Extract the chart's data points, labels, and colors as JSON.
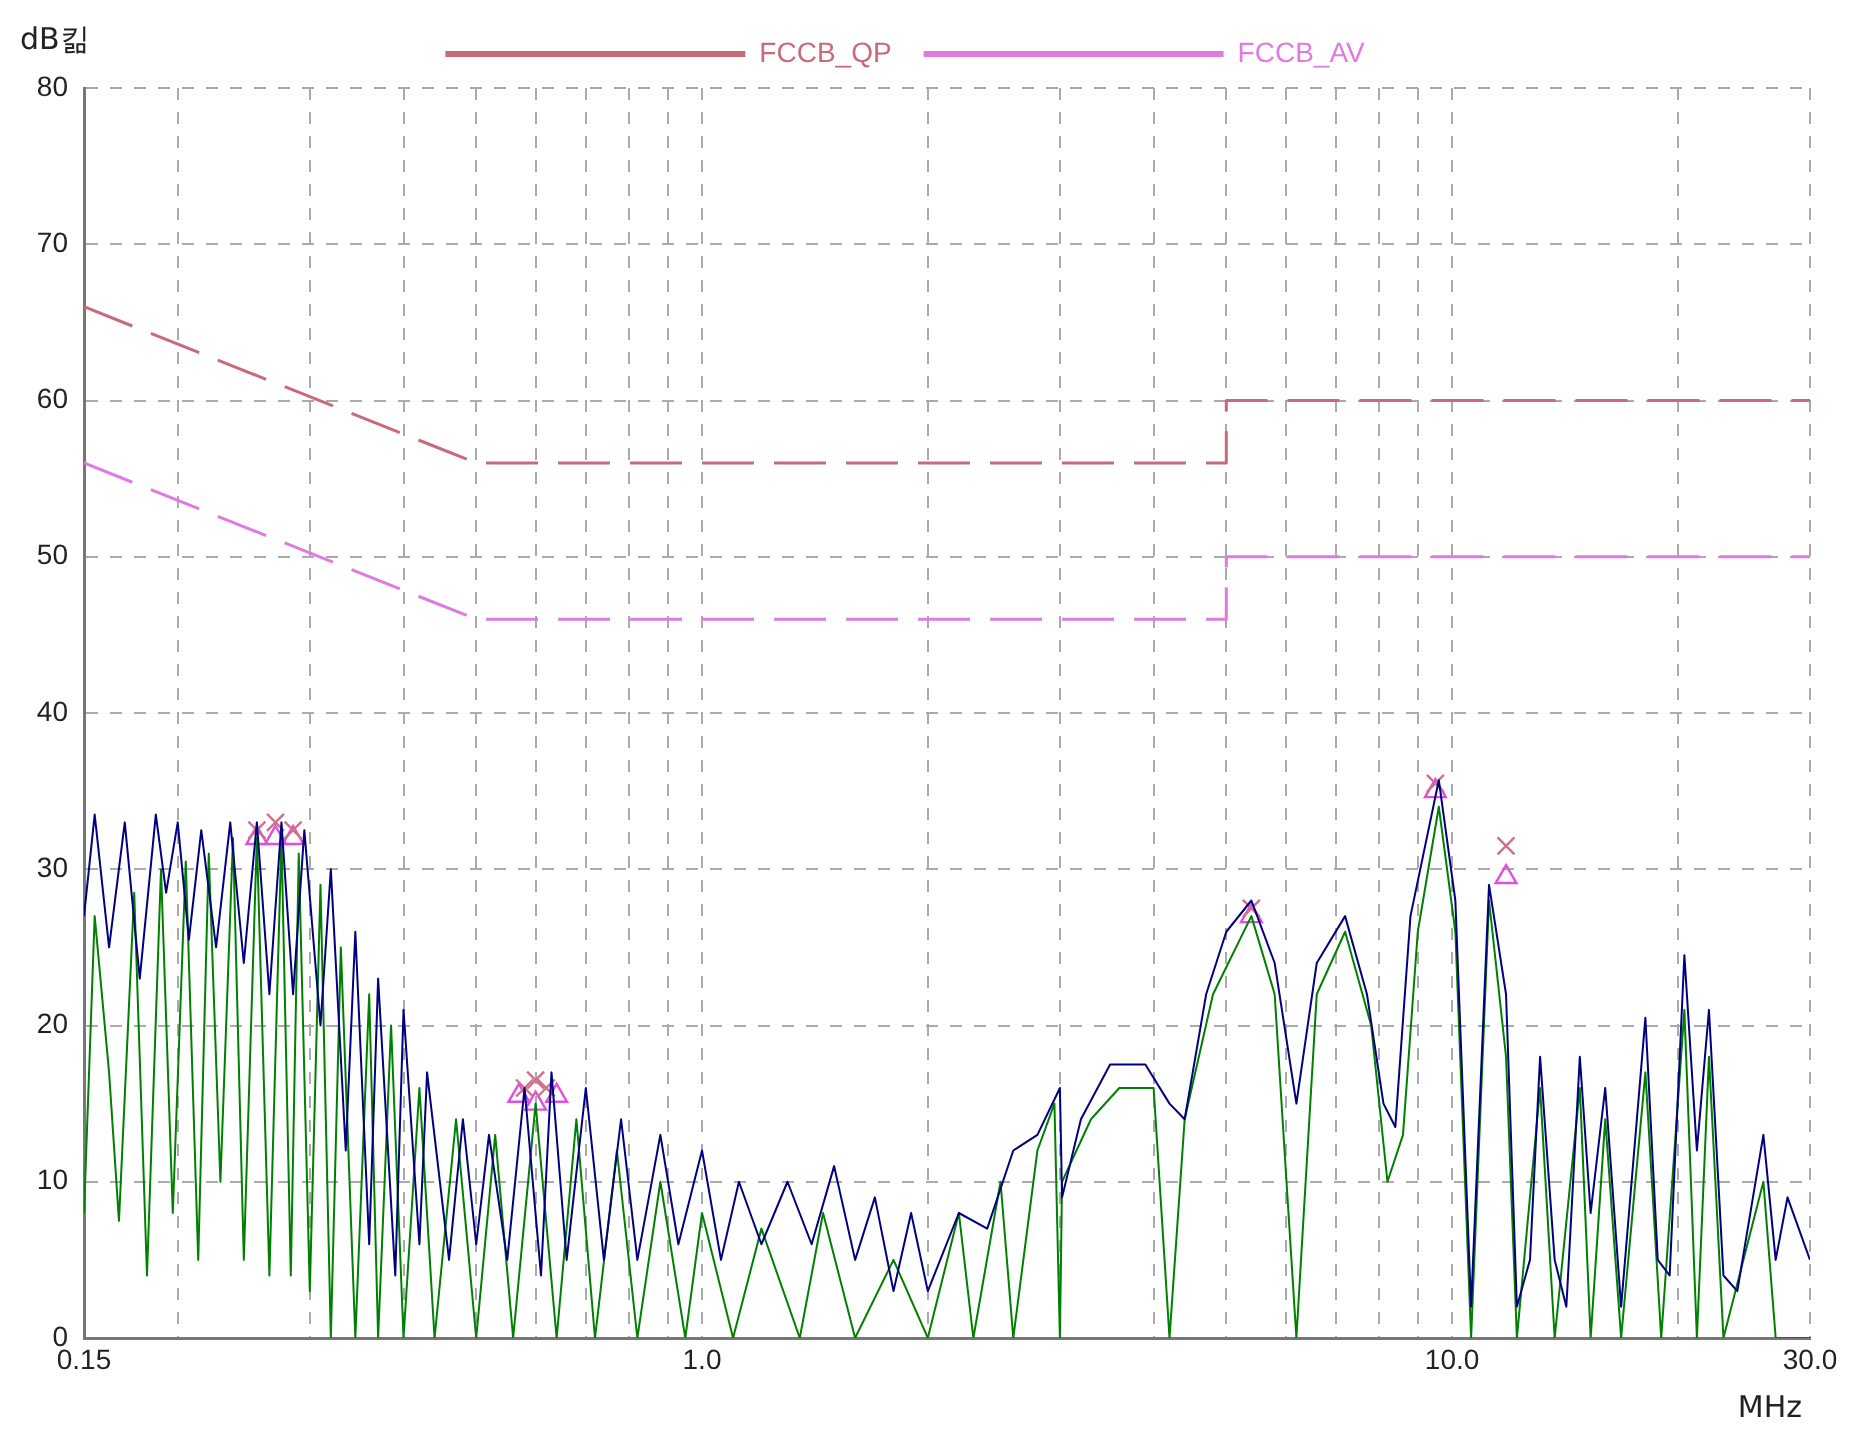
{
  "chart_data": {
    "type": "line",
    "ylabel": "dB킮",
    "xlabel": "MHz",
    "xlim": [
      0.15,
      30
    ],
    "ylim": [
      0,
      80
    ],
    "xticks": [
      {
        "value": 0.15,
        "label": "0.15"
      },
      {
        "value": 0.2,
        "label": null
      },
      {
        "value": 0.3,
        "label": null
      },
      {
        "value": 0.4,
        "label": null
      },
      {
        "value": 0.5,
        "label": null
      },
      {
        "value": 0.6,
        "label": null
      },
      {
        "value": 0.7,
        "label": null
      },
      {
        "value": 0.8,
        "label": null
      },
      {
        "value": 0.9,
        "label": null
      },
      {
        "value": 1,
        "label": "1.0"
      },
      {
        "value": 2,
        "label": null
      },
      {
        "value": 3,
        "label": null
      },
      {
        "value": 4,
        "label": null
      },
      {
        "value": 5,
        "label": null
      },
      {
        "value": 6,
        "label": null
      },
      {
        "value": 7,
        "label": null
      },
      {
        "value": 8,
        "label": null
      },
      {
        "value": 9,
        "label": null
      },
      {
        "value": 10,
        "label": "10.0"
      },
      {
        "value": 20,
        "label": null
      },
      {
        "value": 30,
        "label": "30.0"
      }
    ],
    "yticks": [
      0,
      10,
      20,
      30,
      40,
      50,
      60,
      70,
      80
    ],
    "log": "x",
    "grid": true,
    "legend": "top",
    "marker": "none",
    "line_style": "solid",
    "series": [
      {
        "color": "#000080",
        "x": [
          0.15,
          0.155,
          0.162,
          0.17,
          0.178,
          0.187,
          0.193,
          0.2,
          0.207,
          0.215,
          0.225,
          0.235,
          0.245,
          0.255,
          0.265,
          0.275,
          0.285,
          0.295,
          0.31,
          0.32,
          0.335,
          0.345,
          0.36,
          0.37,
          0.39,
          0.4,
          0.42,
          0.43,
          0.46,
          0.48,
          0.5,
          0.52,
          0.55,
          0.58,
          0.61,
          0.63,
          0.66,
          0.7,
          0.74,
          0.78,
          0.82,
          0.88,
          0.93,
          1.0,
          1.06,
          1.12,
          1.2,
          1.3,
          1.4,
          1.5,
          1.6,
          1.7,
          1.8,
          1.9,
          2.0,
          2.2,
          2.4,
          2.6,
          2.8,
          3.0,
          3.02,
          3.2,
          3.5,
          3.9,
          4.2,
          4.4,
          4.7,
          5.0,
          5.4,
          5.8,
          6.2,
          6.6,
          7.2,
          7.7,
          8.1,
          8.4,
          8.8,
          9.6,
          10.1,
          10.6,
          11.2,
          11.8,
          12.2,
          12.7,
          13.1,
          13.7,
          14.2,
          14.8,
          15.3,
          16,
          16.8,
          18.1,
          18.8,
          19.5,
          20.4,
          21.2,
          22,
          23,
          24,
          26,
          27,
          28,
          30
        ],
        "values": [
          27,
          33.5,
          25,
          33,
          23,
          33.5,
          28.5,
          33,
          25.5,
          32.5,
          25,
          33,
          24,
          33,
          22,
          33,
          22,
          32.5,
          20,
          30,
          12,
          26,
          6,
          23,
          4,
          21,
          6,
          17,
          5,
          14,
          6,
          13,
          5,
          16,
          4,
          17,
          5,
          16,
          5,
          14,
          5,
          13,
          6,
          12,
          5,
          10,
          6,
          10,
          6,
          11,
          5,
          9,
          3,
          8,
          3,
          8,
          7,
          12,
          13,
          16,
          9,
          14,
          17.5,
          17.5,
          15,
          14,
          22,
          26,
          28,
          24,
          15,
          24,
          27,
          22,
          15,
          13.5,
          27,
          35.7,
          28,
          2,
          29,
          22,
          2,
          5,
          18,
          5,
          2,
          18,
          8,
          16,
          2,
          20.5,
          5,
          4,
          24.5,
          12,
          21,
          4,
          3,
          13,
          5,
          9,
          5
        ]
      },
      {
        "color": "#008000",
        "x": [
          0.15,
          0.155,
          0.162,
          0.167,
          0.175,
          0.182,
          0.19,
          0.197,
          0.205,
          0.213,
          0.22,
          0.228,
          0.237,
          0.245,
          0.255,
          0.265,
          0.275,
          0.283,
          0.29,
          0.3,
          0.31,
          0.32,
          0.33,
          0.345,
          0.36,
          0.37,
          0.385,
          0.4,
          0.42,
          0.44,
          0.47,
          0.5,
          0.53,
          0.56,
          0.6,
          0.64,
          0.68,
          0.72,
          0.77,
          0.82,
          0.88,
          0.95,
          1.0,
          1.1,
          1.2,
          1.35,
          1.45,
          1.6,
          1.8,
          2.0,
          2.2,
          2.3,
          2.5,
          2.6,
          2.8,
          2.95,
          3.0,
          3.02,
          3.3,
          3.6,
          4.0,
          4.2,
          4.4,
          4.8,
          5.4,
          5.8,
          6.2,
          6.6,
          7.2,
          7.8,
          8.2,
          8.6,
          9.0,
          9.6,
          10.1,
          10.6,
          11.2,
          11.8,
          12.2,
          13.1,
          13.7,
          14.8,
          15.3,
          16,
          16.8,
          18.1,
          19,
          20.4,
          21.2,
          22,
          23,
          26,
          27,
          30
        ],
        "values": [
          8,
          27,
          17,
          7.5,
          28.5,
          4,
          30,
          8,
          30.5,
          5,
          31,
          10,
          32,
          5,
          32,
          4,
          32,
          4,
          31,
          3,
          29,
          0,
          25,
          0,
          22,
          0,
          20,
          0,
          16,
          0,
          14,
          0,
          13,
          0,
          15,
          0,
          14,
          0,
          12,
          0,
          10,
          0,
          8,
          0,
          7,
          0,
          8,
          0,
          5,
          0,
          8,
          0,
          10,
          0,
          12,
          15,
          0,
          10,
          14,
          16,
          16,
          0,
          14,
          22,
          27,
          22,
          0,
          22,
          26,
          20,
          10,
          13,
          26,
          34,
          26,
          0,
          28,
          18,
          0,
          16,
          0,
          16,
          0,
          14,
          0,
          17,
          0,
          21,
          0,
          18,
          0,
          10,
          0,
          0
        ]
      },
      {
        "name": "FCCB_QP",
        "color": "#c86a7a",
        "line_style": "dashed",
        "x": [
          0.15,
          0.5,
          5,
          5,
          30
        ],
        "values": [
          66,
          56,
          56,
          60,
          60
        ]
      },
      {
        "name": "FCCB_AV",
        "color": "#e07ae0",
        "line_style": "dashed",
        "x": [
          0.15,
          0.5,
          5,
          5,
          30
        ],
        "values": [
          56,
          46,
          46,
          50,
          50
        ]
      },
      {
        "type": "scatter",
        "marker": "cross",
        "color": "#d0708a",
        "x": [
          0.255,
          0.27,
          0.285,
          0.58,
          0.6,
          0.62,
          5.4,
          9.5,
          11.8
        ],
        "values": [
          32.5,
          33,
          32.5,
          16,
          16.5,
          16,
          27.5,
          35.5,
          31.5
        ]
      },
      {
        "type": "scatter",
        "marker": "triangle",
        "color": "#e050e0",
        "x": [
          0.255,
          0.27,
          0.285,
          0.57,
          0.6,
          0.64,
          5.4,
          9.5,
          11.8
        ],
        "values": [
          32,
          32,
          32,
          15.5,
          15,
          15.5,
          27,
          35,
          29.5
        ]
      }
    ]
  }
}
